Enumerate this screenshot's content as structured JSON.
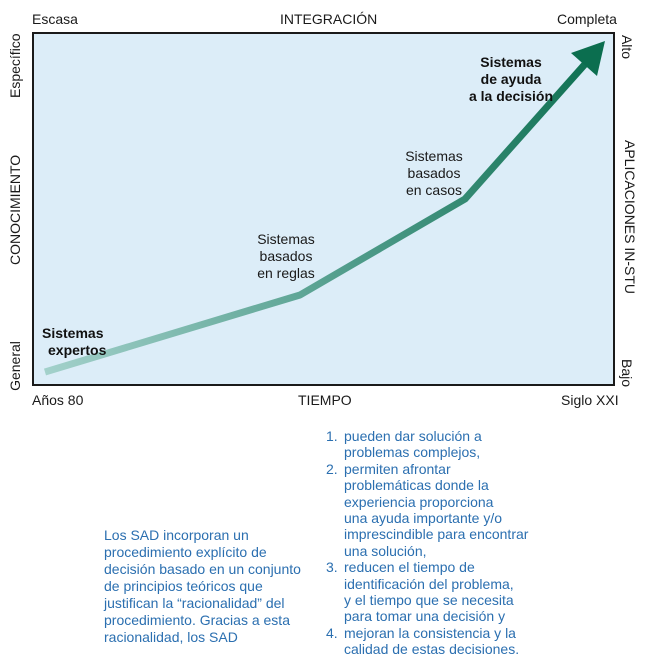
{
  "diagram": {
    "top_left": "Escasa",
    "top_center": "INTEGRACIÓN",
    "top_right": "Completa",
    "bottom_left": "Años 80",
    "bottom_center": "TIEMPO",
    "bottom_right": "Siglo XXI",
    "left_top": "Específico",
    "left_center": "CONOCIMIENTO",
    "left_bottom": "General",
    "right_top": "Alto",
    "right_center": "APLICACIONES IN-STU",
    "right_bottom": "Bajo",
    "stages": [
      {
        "lines": [
          "Sistemas",
          "expertos"
        ]
      },
      {
        "lines": [
          "Sistemas",
          "basados",
          "en reglas"
        ]
      },
      {
        "lines": [
          "Sistemas",
          "basados",
          "en casos"
        ]
      },
      {
        "lines": [
          "Sistemas",
          "de ayuda",
          "a la decisión"
        ]
      }
    ],
    "colors": {
      "plot_bg": "#dcedf8",
      "arrow_start": "#9fcfc8",
      "arrow_end": "#0b6e4f",
      "text_blue": "#2b6fb0"
    }
  },
  "paragraph": {
    "lines": [
      "Los SAD incorporan un",
      "procedimiento explícito de",
      "decisión basado en un conjunto",
      "de principios teóricos que",
      "justifican la “racionalidad” del",
      "procedimiento. Gracias a esta",
      "racionalidad, los SAD"
    ]
  },
  "list": {
    "items": [
      {
        "num": "1.",
        "lines": [
          "pueden dar solución a",
          "problemas complejos,"
        ]
      },
      {
        "num": "2.",
        "lines": [
          "permiten afrontar",
          "problemáticas donde la",
          "experiencia proporciona",
          "una ayuda importante y/o",
          "imprescindible para encontrar",
          "una solución,"
        ]
      },
      {
        "num": "3.",
        "lines": [
          "reducen el tiempo de",
          "identificación del problema,",
          "y el tiempo que se necesita",
          "para tomar una decisión y"
        ]
      },
      {
        "num": "4.",
        "lines": [
          "mejoran la consistencia y la",
          "calidad de estas decisiones."
        ]
      }
    ]
  }
}
